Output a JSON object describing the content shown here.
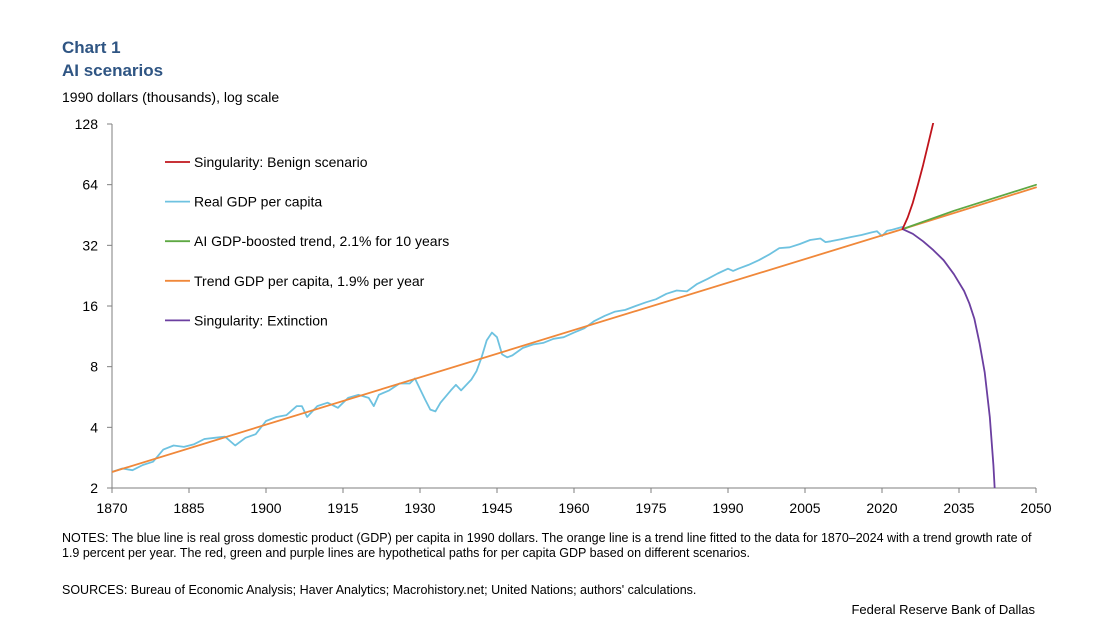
{
  "header": {
    "chart_label": "Chart 1",
    "title": "AI scenarios",
    "units": "1990 dollars (thousands),  log scale"
  },
  "footer": {
    "notes": "NOTES: The blue line is real gross domestic product (GDP) per capita in 1990 dollars. The orange line is a trend line fitted to the data for 1870–2024 with a trend growth rate of 1.9 percent per year. The red, green and purple lines are hypothetical paths for per capita GDP based on different scenarios.",
    "sources": "SOURCES: Bureau of Economic Analysis; Haver Analytics; Macrohistory.net; United Nations; authors' calculations.",
    "credit": "Federal Reserve Bank of Dallas"
  },
  "chart_data": {
    "type": "line",
    "title": "AI scenarios",
    "ylabel": "1990 dollars (thousands),  log scale",
    "xlabel": "",
    "yscale": "log2",
    "xlim": [
      1870,
      2050
    ],
    "ylim": [
      2,
      128
    ],
    "x_ticks": [
      1870,
      1885,
      1900,
      1915,
      1930,
      1945,
      1960,
      1975,
      1990,
      2005,
      2020,
      2035,
      2050
    ],
    "y_ticks": [
      2,
      4,
      8,
      16,
      32,
      64,
      128
    ],
    "legend_position": "top-left",
    "series": [
      {
        "name": "Singularity: Benign scenario",
        "color": "#c0141c",
        "x": [
          2024,
          2025,
          2026,
          2027,
          2028,
          2029,
          2030
        ],
        "values": [
          38.5,
          44,
          52,
          64,
          80,
          102,
          130
        ]
      },
      {
        "name": "Real GDP per capita",
        "color": "#6ec2e0",
        "x": [
          1870,
          1872,
          1874,
          1876,
          1878,
          1880,
          1882,
          1884,
          1886,
          1888,
          1890,
          1892,
          1894,
          1896,
          1898,
          1900,
          1902,
          1904,
          1906,
          1907,
          1908,
          1910,
          1912,
          1914,
          1916,
          1918,
          1920,
          1921,
          1922,
          1924,
          1926,
          1928,
          1929,
          1930,
          1931,
          1932,
          1933,
          1934,
          1936,
          1937,
          1938,
          1940,
          1941,
          1942,
          1943,
          1944,
          1945,
          1946,
          1947,
          1948,
          1950,
          1952,
          1954,
          1956,
          1958,
          1960,
          1962,
          1964,
          1966,
          1968,
          1970,
          1972,
          1974,
          1976,
          1978,
          1980,
          1982,
          1984,
          1986,
          1988,
          1990,
          1991,
          1992,
          1994,
          1996,
          1998,
          2000,
          2002,
          2004,
          2006,
          2008,
          2009,
          2010,
          2012,
          2014,
          2016,
          2018,
          2019,
          2020,
          2021,
          2022,
          2024
        ],
        "values": [
          2.4,
          2.5,
          2.45,
          2.6,
          2.7,
          3.1,
          3.25,
          3.2,
          3.3,
          3.5,
          3.55,
          3.6,
          3.25,
          3.55,
          3.7,
          4.3,
          4.5,
          4.6,
          5.1,
          5.1,
          4.5,
          5.1,
          5.3,
          5.0,
          5.6,
          5.8,
          5.6,
          5.1,
          5.8,
          6.1,
          6.6,
          6.6,
          7.0,
          6.2,
          5.5,
          4.9,
          4.8,
          5.3,
          6.1,
          6.5,
          6.1,
          6.9,
          7.6,
          8.9,
          10.8,
          11.8,
          11.2,
          9.2,
          8.9,
          9.1,
          9.9,
          10.3,
          10.5,
          11.0,
          11.2,
          11.8,
          12.4,
          13.5,
          14.3,
          15.0,
          15.3,
          16.0,
          16.7,
          17.3,
          18.4,
          19.1,
          18.9,
          20.6,
          21.8,
          23.2,
          24.5,
          23.9,
          24.5,
          25.6,
          27.0,
          28.8,
          31.0,
          31.3,
          32.5,
          34.0,
          34.6,
          33.2,
          33.5,
          34.3,
          35.2,
          36.0,
          37.1,
          37.6,
          35.6,
          37.8,
          38.2,
          39.5
        ]
      },
      {
        "name": "AI GDP-boosted trend, 2.1% for 10 years",
        "color": "#5ea843",
        "x": [
          2024,
          2034,
          2050
        ],
        "values": [
          38.5,
          47.5,
          63.9
        ]
      },
      {
        "name": "Trend GDP per capita, 1.9% per year",
        "color": "#f0883a",
        "x": [
          1870,
          2024,
          2050
        ],
        "values": [
          2.4,
          38.5,
          62.0
        ]
      },
      {
        "name": "Singularity: Extinction",
        "color": "#6b3fa0",
        "x": [
          2024,
          2026,
          2028,
          2030,
          2032,
          2034,
          2036,
          2037,
          2038,
          2039,
          2040,
          2041,
          2041.7,
          2042
        ],
        "values": [
          38.5,
          36.5,
          33.5,
          30.3,
          27.0,
          23.0,
          19.0,
          16.5,
          13.8,
          10.5,
          7.5,
          4.5,
          2.6,
          1.9
        ]
      }
    ]
  }
}
